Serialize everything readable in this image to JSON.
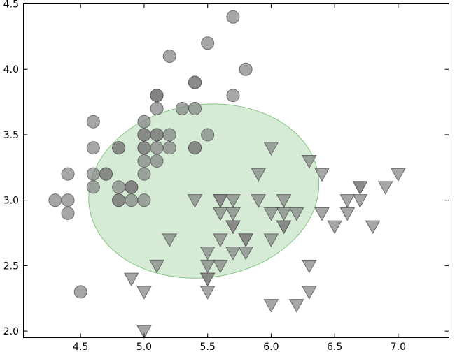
{
  "chart_data": {
    "type": "scatter",
    "title": "",
    "xlabel": "",
    "ylabel": "",
    "xlim": [
      4.05,
      7.4
    ],
    "ylim": [
      1.95,
      4.5
    ],
    "xticks": [
      "4.5",
      "5.0",
      "5.5",
      "6.0",
      "6.5",
      "7.0"
    ],
    "xtick_values": [
      4.5,
      5.0,
      5.5,
      6.0,
      6.5,
      7.0
    ],
    "yticks": [
      "2.0",
      "2.5",
      "3.0",
      "3.5",
      "4.0",
      "4.5"
    ],
    "ytick_values": [
      2.0,
      2.5,
      3.0,
      3.5,
      4.0,
      4.5
    ],
    "grid": false,
    "ellipse": {
      "center": [
        5.47,
        3.07
      ],
      "width": 1.82,
      "height": 1.32,
      "angle_deg": -8,
      "fill": "#d6ebd6",
      "stroke": "#86c486"
    },
    "series": [
      {
        "marker": "circle",
        "color": "#808080",
        "alpha": 0.7,
        "points": [
          [
            5.1,
            3.5
          ],
          [
            4.9,
            3.0
          ],
          [
            4.7,
            3.2
          ],
          [
            4.6,
            3.1
          ],
          [
            5.0,
            3.6
          ],
          [
            5.4,
            3.9
          ],
          [
            4.6,
            3.4
          ],
          [
            5.0,
            3.4
          ],
          [
            4.4,
            2.9
          ],
          [
            4.9,
            3.1
          ],
          [
            5.4,
            3.7
          ],
          [
            4.8,
            3.4
          ],
          [
            4.8,
            3.0
          ],
          [
            4.3,
            3.0
          ],
          [
            5.8,
            4.0
          ],
          [
            5.7,
            4.4
          ],
          [
            5.4,
            3.9
          ],
          [
            5.1,
            3.5
          ],
          [
            5.7,
            3.8
          ],
          [
            5.1,
            3.8
          ],
          [
            5.4,
            3.4
          ],
          [
            5.1,
            3.7
          ],
          [
            4.6,
            3.6
          ],
          [
            5.1,
            3.3
          ],
          [
            4.8,
            3.4
          ],
          [
            5.0,
            3.0
          ],
          [
            5.0,
            3.4
          ],
          [
            5.2,
            3.5
          ],
          [
            5.2,
            3.4
          ],
          [
            4.7,
            3.2
          ],
          [
            4.8,
            3.1
          ],
          [
            5.4,
            3.4
          ],
          [
            5.2,
            4.1
          ],
          [
            5.5,
            4.2
          ],
          [
            4.9,
            3.1
          ],
          [
            5.0,
            3.2
          ],
          [
            5.5,
            3.5
          ],
          [
            4.9,
            3.1
          ],
          [
            4.4,
            3.0
          ],
          [
            5.1,
            3.4
          ],
          [
            5.0,
            3.5
          ],
          [
            4.5,
            2.3
          ],
          [
            4.4,
            3.2
          ],
          [
            5.0,
            3.5
          ],
          [
            5.1,
            3.8
          ],
          [
            4.8,
            3.0
          ],
          [
            5.1,
            3.8
          ],
          [
            4.6,
            3.2
          ],
          [
            5.3,
            3.7
          ],
          [
            5.0,
            3.3
          ]
        ]
      },
      {
        "marker": "triangle-down",
        "color": "#808080",
        "alpha": 0.7,
        "points": [
          [
            7.0,
            3.2
          ],
          [
            6.4,
            3.2
          ],
          [
            6.9,
            3.1
          ],
          [
            5.5,
            2.3
          ],
          [
            6.5,
            2.8
          ],
          [
            5.7,
            2.8
          ],
          [
            6.3,
            3.3
          ],
          [
            4.9,
            2.4
          ],
          [
            6.6,
            2.9
          ],
          [
            5.2,
            2.7
          ],
          [
            5.0,
            2.0
          ],
          [
            5.9,
            3.0
          ],
          [
            6.0,
            2.2
          ],
          [
            6.1,
            2.9
          ],
          [
            5.6,
            2.9
          ],
          [
            6.7,
            3.1
          ],
          [
            5.6,
            3.0
          ],
          [
            5.8,
            2.7
          ],
          [
            6.2,
            2.2
          ],
          [
            5.6,
            2.5
          ],
          [
            5.9,
            3.2
          ],
          [
            6.1,
            2.8
          ],
          [
            6.3,
            2.5
          ],
          [
            6.1,
            2.8
          ],
          [
            6.4,
            2.9
          ],
          [
            6.6,
            3.0
          ],
          [
            6.8,
            2.8
          ],
          [
            6.7,
            3.0
          ],
          [
            6.0,
            2.9
          ],
          [
            5.7,
            2.6
          ],
          [
            5.5,
            2.4
          ],
          [
            5.5,
            2.4
          ],
          [
            5.8,
            2.7
          ],
          [
            6.0,
            2.7
          ],
          [
            5.4,
            3.0
          ],
          [
            6.0,
            3.4
          ],
          [
            6.7,
            3.1
          ],
          [
            6.3,
            2.3
          ],
          [
            5.6,
            3.0
          ],
          [
            5.5,
            2.5
          ],
          [
            5.5,
            2.6
          ],
          [
            6.1,
            3.0
          ],
          [
            5.8,
            2.6
          ],
          [
            5.0,
            2.3
          ],
          [
            5.6,
            2.7
          ],
          [
            5.7,
            3.0
          ],
          [
            5.7,
            2.9
          ],
          [
            6.2,
            2.9
          ],
          [
            5.1,
            2.5
          ],
          [
            5.7,
            2.8
          ]
        ]
      }
    ]
  }
}
